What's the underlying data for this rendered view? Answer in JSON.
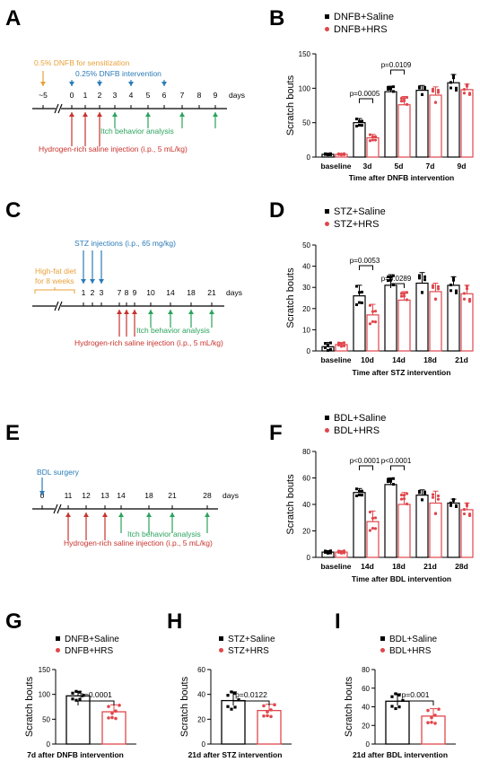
{
  "timelines": [
    {
      "letter": "A",
      "axis_label": "days",
      "ticks": [
        "~5",
        "0",
        "1",
        "2",
        "3",
        "4",
        "5",
        "6",
        "7",
        "8",
        "9"
      ],
      "break_between": [
        "~5",
        "0"
      ],
      "annotations": [
        {
          "text": "0.5% DNFB for sensitization",
          "color": "#e8a13a",
          "side": "above",
          "arrows_at": [
            "~5"
          ]
        },
        {
          "text": "0.25% DNFB intervention",
          "color": "#2a7bb8",
          "side": "above",
          "arrows_at": [
            "0",
            "2",
            "4",
            "6"
          ]
        },
        {
          "text": "Itch behavior analysis",
          "color": "#2aa35c",
          "side": "below",
          "arrows_at": [
            "3",
            "5",
            "7",
            "9"
          ]
        },
        {
          "text": "Hydrogen-rich saline injection (i.p., 5 mL/kg)",
          "color": "#c8332d",
          "side": "below",
          "arrows_at": [
            "0",
            "1",
            "2"
          ]
        }
      ]
    },
    {
      "letter": "C",
      "axis_label": "days",
      "ticks": [
        "1",
        "2",
        "3",
        "7",
        "8",
        "9",
        "10",
        "14",
        "18",
        "21"
      ],
      "break_before": "1",
      "bracket_text": [
        "High-fat diet",
        "for 8 weeks"
      ],
      "bracket_color": "#e8a13a",
      "annotations": [
        {
          "text": "STZ injections (i.p., 65 mg/kg)",
          "color": "#2a7bb8",
          "side": "above",
          "arrows_at": [
            "1",
            "2",
            "3"
          ]
        },
        {
          "text": "Itch behavior analysis",
          "color": "#2aa35c",
          "side": "below",
          "arrows_at": [
            "10",
            "14",
            "18",
            "21"
          ]
        },
        {
          "text": "Hydrogen-rich saline injection (i.p., 5 mL/kg)",
          "color": "#c8332d",
          "side": "below",
          "arrows_at": [
            "7",
            "8",
            "9"
          ]
        }
      ]
    },
    {
      "letter": "E",
      "axis_label": "days",
      "ticks": [
        "0",
        "11",
        "12",
        "13",
        "14",
        "18",
        "21",
        "28"
      ],
      "break_between": [
        "0",
        "11"
      ],
      "annotations": [
        {
          "text": "BDL surgery",
          "color": "#2a7bb8",
          "side": "above",
          "arrows_at": [
            "0"
          ]
        },
        {
          "text": "Itch behavior analysis",
          "color": "#2aa35c",
          "side": "below",
          "arrows_at": [
            "14",
            "18",
            "21",
            "28"
          ]
        },
        {
          "text": "Hydrogen-rich saline injection (i.p., 5 mL/kg)",
          "color": "#c8332d",
          "side": "below",
          "arrows_at": [
            "11",
            "12",
            "13"
          ]
        }
      ]
    }
  ],
  "chart_data": [
    {
      "letter": "B",
      "type": "bar",
      "ylabel": "Scratch bouts",
      "xlabel": "Time after DNFB intervention",
      "ylim": [
        0,
        150
      ],
      "yticks": [
        0,
        50,
        100,
        150
      ],
      "categories": [
        "baseline",
        "3d",
        "5d",
        "7d",
        "9d"
      ],
      "series": [
        {
          "name": "DNFB+Saline",
          "color": "#000000",
          "values": [
            4,
            50,
            95,
            97,
            108
          ],
          "errors": [
            1,
            6,
            8,
            7,
            12
          ]
        },
        {
          "name": "DNFB+HRS",
          "color": "#e0474c",
          "values": [
            4,
            28,
            76,
            90,
            98
          ],
          "errors": [
            1,
            5,
            12,
            12,
            8
          ]
        }
      ],
      "pvalues": [
        {
          "category": "3d",
          "text": "p=0.0005"
        },
        {
          "category": "5d",
          "text": "p=0.0109"
        }
      ]
    },
    {
      "letter": "D",
      "type": "bar",
      "ylabel": "Scratch bouts",
      "xlabel": "Time after STZ intervention",
      "ylim": [
        0,
        50
      ],
      "yticks": [
        0,
        10,
        20,
        30,
        40,
        50
      ],
      "categories": [
        "baseline",
        "10d",
        "14d",
        "18d",
        "21d"
      ],
      "series": [
        {
          "name": "STZ+Saline",
          "color": "#000000",
          "values": [
            2,
            26,
            31,
            32,
            31
          ],
          "errors": [
            2,
            5,
            5,
            5,
            4
          ]
        },
        {
          "name": "STZ+HRS",
          "color": "#e0474c",
          "values": [
            3,
            17,
            24,
            28,
            27
          ],
          "errors": [
            1,
            5,
            4,
            4,
            4
          ]
        }
      ],
      "pvalues": [
        {
          "category": "10d",
          "text": "p=0.0053"
        },
        {
          "category": "14d",
          "text": "p=0.0289"
        }
      ]
    },
    {
      "letter": "F",
      "type": "bar",
      "ylabel": "Scratch bouts",
      "xlabel": "Time after BDL intervention",
      "ylim": [
        0,
        80
      ],
      "yticks": [
        0,
        20,
        40,
        60,
        80
      ],
      "categories": [
        "baseline",
        "14d",
        "18d",
        "21d",
        "28d"
      ],
      "series": [
        {
          "name": "BDL+Saline",
          "color": "#000000",
          "values": [
            4,
            49,
            55,
            47,
            41
          ],
          "errors": [
            1,
            3,
            5,
            4,
            3
          ]
        },
        {
          "name": "BDL+HRS",
          "color": "#e0474c",
          "values": [
            4,
            27,
            40,
            41,
            36
          ],
          "errors": [
            1,
            8,
            9,
            9,
            5
          ]
        }
      ],
      "pvalues": [
        {
          "category": "14d",
          "text": "p<0.0001"
        },
        {
          "category": "18d",
          "text": "p<0.0001"
        }
      ]
    },
    {
      "letter": "G",
      "type": "bar",
      "ylabel": "Scratch bouts",
      "xlabel": "7d after DNFB intervention",
      "ylim": [
        0,
        150
      ],
      "yticks": [
        0,
        50,
        100,
        150
      ],
      "series": [
        {
          "name": "DNFB+Saline",
          "color": "#000000",
          "value": 97,
          "error": 9
        },
        {
          "name": "DNFB+HRS",
          "color": "#e0474c",
          "value": 65,
          "error": 14
        }
      ],
      "pvalue": "p=0.0001"
    },
    {
      "letter": "H",
      "type": "bar",
      "ylabel": "Scratch bouts",
      "xlabel": "21d after STZ intervention",
      "ylim": [
        0,
        60
      ],
      "yticks": [
        0,
        20,
        40,
        60
      ],
      "series": [
        {
          "name": "STZ+Saline",
          "color": "#000000",
          "value": 35,
          "error": 7
        },
        {
          "name": "STZ+HRS",
          "color": "#e0474c",
          "value": 27,
          "error": 5
        }
      ],
      "pvalue": "p=0.0122"
    },
    {
      "letter": "I",
      "type": "bar",
      "ylabel": "Scratch bouts",
      "xlabel": "21d after BDL intervention",
      "ylim": [
        0,
        80
      ],
      "yticks": [
        0,
        20,
        40,
        60,
        80
      ],
      "series": [
        {
          "name": "BDL+Saline",
          "color": "#000000",
          "value": 46,
          "error": 8
        },
        {
          "name": "BDL+HRS",
          "color": "#e0474c",
          "value": 30,
          "error": 8
        }
      ],
      "pvalue": "p=0.001"
    }
  ]
}
